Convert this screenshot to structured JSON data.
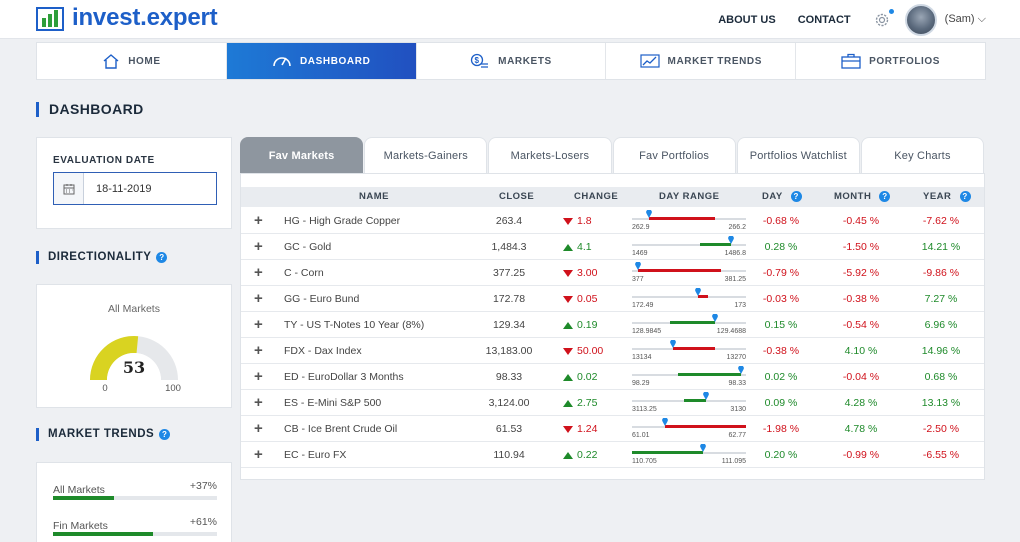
{
  "brand": {
    "name": "invest.expert"
  },
  "header": {
    "links": [
      "ABOUT US",
      "CONTACT"
    ],
    "user": "(Sam) ⌵"
  },
  "nav": [
    {
      "label": "HOME",
      "icon": "home-icon",
      "active": false
    },
    {
      "label": "DASHBOARD",
      "icon": "speedometer-icon",
      "active": true
    },
    {
      "label": "MARKETS",
      "icon": "coins-icon",
      "active": false
    },
    {
      "label": "MARKET TRENDS",
      "icon": "trend-chart-icon",
      "active": false
    },
    {
      "label": "PORTFOLIOS",
      "icon": "briefcase-icon",
      "active": false
    }
  ],
  "page_title": "DASHBOARD",
  "evaluation": {
    "label": "EVALUATION DATE",
    "date": "18-11-2019"
  },
  "directionality": {
    "heading": "DIRECTIONALITY",
    "gauge": {
      "title": "All Markets",
      "value": 53,
      "min": 0,
      "max": 100
    }
  },
  "market_trends": {
    "heading": "MARKET TRENDS",
    "items": [
      {
        "label": "All Markets",
        "value": "+37%",
        "fill": 0.37
      },
      {
        "label": "Fin Markets",
        "value": "+61%",
        "fill": 0.61
      }
    ]
  },
  "tabs": [
    "Fav Markets",
    "Markets-Gainers",
    "Markets-Losers",
    "Fav Portfolios",
    "Portfolios Watchlist",
    "Key Charts"
  ],
  "active_tab": 0,
  "table": {
    "headers": {
      "name": "NAME",
      "close": "CLOSE",
      "change": "CHANGE",
      "range": "DAY RANGE",
      "day": "DAY",
      "month": "MONTH",
      "year": "YEAR"
    },
    "colors": {
      "up": "#1e8a2a",
      "down": "#d0111b",
      "pin": "#1e88e5"
    },
    "rows": [
      {
        "name": "HG - High Grade Copper",
        "close": "263.4",
        "change": "1.8",
        "dir": "down",
        "low": "262.9",
        "high": "266.2",
        "day": "-0.68 %",
        "month": "-0.45 %",
        "year": "-7.62 %",
        "pin_pos": 0.15,
        "seg_from": 0.15,
        "seg_to": 0.73
      },
      {
        "name": "GC - Gold",
        "close": "1,484.3",
        "change": "4.1",
        "dir": "up",
        "low": "1469",
        "high": "1486.8",
        "day": "0.28 %",
        "month": "-1.50 %",
        "year": "14.21 %",
        "pin_pos": 0.87,
        "seg_from": 0.6,
        "seg_to": 0.87
      },
      {
        "name": "C - Corn",
        "close": "377.25",
        "change": "3.00",
        "dir": "down",
        "low": "377",
        "high": "381.25",
        "day": "-0.79 %",
        "month": "-5.92 %",
        "year": "-9.86 %",
        "pin_pos": 0.05,
        "seg_from": 0.05,
        "seg_to": 0.78
      },
      {
        "name": "GG - Euro Bund",
        "close": "172.78",
        "change": "0.05",
        "dir": "down",
        "low": "172.49",
        "high": "173",
        "day": "-0.03 %",
        "month": "-0.38 %",
        "year": "7.27 %",
        "pin_pos": 0.58,
        "seg_from": 0.58,
        "seg_to": 0.67
      },
      {
        "name": "TY - US T-Notes 10 Year (8%)",
        "close": "129.34",
        "change": "0.19",
        "dir": "up",
        "low": "128.9845",
        "high": "129.4688",
        "day": "0.15 %",
        "month": "-0.54 %",
        "year": "6.96 %",
        "pin_pos": 0.73,
        "seg_from": 0.33,
        "seg_to": 0.73
      },
      {
        "name": "FDX - Dax Index",
        "close": "13,183.00",
        "change": "50.00",
        "dir": "down",
        "low": "13134",
        "high": "13270",
        "day": "-0.38 %",
        "month": "4.10 %",
        "year": "14.96 %",
        "pin_pos": 0.36,
        "seg_from": 0.36,
        "seg_to": 0.73
      },
      {
        "name": "ED - EuroDollar 3 Months",
        "close": "98.33",
        "change": "0.02",
        "dir": "up",
        "low": "98.29",
        "high": "98.33",
        "day": "0.02 %",
        "month": "-0.04 %",
        "year": "0.68 %",
        "pin_pos": 0.96,
        "seg_from": 0.4,
        "seg_to": 0.96
      },
      {
        "name": "ES - E-Mini S&P 500",
        "close": "3,124.00",
        "change": "2.75",
        "dir": "up",
        "low": "3113.25",
        "high": "3130",
        "day": "0.09 %",
        "month": "4.28 %",
        "year": "13.13 %",
        "pin_pos": 0.65,
        "seg_from": 0.46,
        "seg_to": 0.65
      },
      {
        "name": "CB - Ice Brent Crude Oil",
        "close": "61.53",
        "change": "1.24",
        "dir": "down",
        "low": "61.01",
        "high": "62.77",
        "day": "-1.98 %",
        "month": "4.78 %",
        "year": "-2.50 %",
        "pin_pos": 0.29,
        "seg_from": 0.29,
        "seg_to": 1.0
      },
      {
        "name": "EC - Euro FX",
        "close": "110.94",
        "change": "0.22",
        "dir": "up",
        "low": "110.705",
        "high": "111.095",
        "day": "0.20 %",
        "month": "-0.99 %",
        "year": "-6.55 %",
        "pin_pos": 0.62,
        "seg_from": 0.0,
        "seg_to": 0.62
      }
    ]
  }
}
